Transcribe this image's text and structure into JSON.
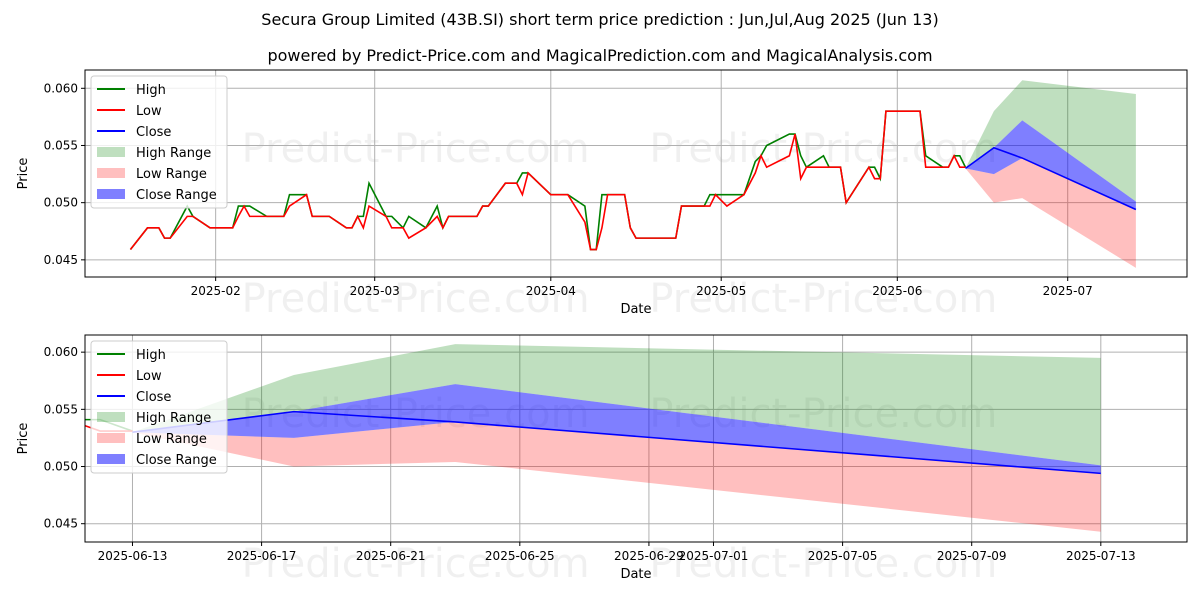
{
  "title": "Secura Group Limited (43B.SI) short term price prediction : Jun,Jul,Aug 2025 (Jun 13)",
  "subtitle": "powered by Predict-Price.com and MagicalPrediction.com and MagicalAnalysis.com",
  "watermark": "Predict-Price.com",
  "colors": {
    "high": "#008000",
    "low": "#ff0000",
    "close": "#0000ff",
    "high_range": "#c0dfc0",
    "low_range": "#ffc0c0",
    "close_range": "#8080ff"
  },
  "legend": [
    "High",
    "Low",
    "Close",
    "High Range",
    "Low Range",
    "Close Range"
  ],
  "chart_data": [
    {
      "type": "line",
      "panel": "overview",
      "xlabel": "Date",
      "ylabel": "Price",
      "xlim": [
        "2025-01-09",
        "2025-07-22"
      ],
      "ylim": [
        0.0435,
        0.0616
      ],
      "xticks": [
        [
          "2025-02-01",
          "2025-02"
        ],
        [
          "2025-03-01",
          "2025-03"
        ],
        [
          "2025-04-01",
          "2025-04"
        ],
        [
          "2025-05-01",
          "2025-05"
        ],
        [
          "2025-06-01",
          "2025-06"
        ],
        [
          "2025-07-01",
          "2025-07"
        ]
      ],
      "yticks": [
        "0.045",
        "0.050",
        "0.055",
        "0.060"
      ],
      "grid": true,
      "legend_position": "top-left"
    },
    {
      "type": "line",
      "panel": "forecast",
      "xlabel": "Date",
      "ylabel": "Price",
      "xlim": [
        "2025-06-11T12:42",
        "2025-07-15T16:05"
      ],
      "ylim": [
        0.0434,
        0.0615
      ],
      "xticks": [
        [
          "2025-06-13",
          "2025-06-13"
        ],
        [
          "2025-06-17",
          "2025-06-17"
        ],
        [
          "2025-06-21",
          "2025-06-21"
        ],
        [
          "2025-06-25",
          "2025-06-25"
        ],
        [
          "2025-06-29",
          "2025-06-29"
        ],
        [
          "2025-07-01",
          "2025-07-01"
        ],
        [
          "2025-07-05",
          "2025-07-05"
        ],
        [
          "2025-07-09",
          "2025-07-09"
        ],
        [
          "2025-07-13",
          "2025-07-13"
        ]
      ],
      "yticks": [
        "0.045",
        "0.050",
        "0.055",
        "0.060"
      ],
      "grid": true,
      "legend_position": "top-left"
    }
  ],
  "history": {
    "dates": [
      "2025-01-17",
      "2025-01-20",
      "2025-01-22",
      "2025-01-23",
      "2025-01-24",
      "2025-01-27",
      "2025-01-28",
      "2025-01-31",
      "2025-02-04",
      "2025-02-05",
      "2025-02-06",
      "2025-02-07",
      "2025-02-10",
      "2025-02-13",
      "2025-02-14",
      "2025-02-17",
      "2025-02-18",
      "2025-02-21",
      "2025-02-24",
      "2025-02-25",
      "2025-02-26",
      "2025-02-27",
      "2025-02-28",
      "2025-03-03",
      "2025-03-04",
      "2025-03-06",
      "2025-03-07",
      "2025-03-10",
      "2025-03-12",
      "2025-03-13",
      "2025-03-14",
      "2025-03-19",
      "2025-03-20",
      "2025-03-21",
      "2025-03-24",
      "2025-03-26",
      "2025-03-27",
      "2025-03-28",
      "2025-04-01",
      "2025-04-04",
      "2025-04-07",
      "2025-04-08",
      "2025-04-09",
      "2025-04-10",
      "2025-04-11",
      "2025-04-14",
      "2025-04-15",
      "2025-04-16",
      "2025-04-23",
      "2025-04-24",
      "2025-04-28",
      "2025-04-29",
      "2025-04-30",
      "2025-05-02",
      "2025-05-05",
      "2025-05-07",
      "2025-05-08",
      "2025-05-09",
      "2025-05-13",
      "2025-05-14",
      "2025-05-15",
      "2025-05-16",
      "2025-05-19",
      "2025-05-20",
      "2025-05-22",
      "2025-05-23",
      "2025-05-27",
      "2025-05-28",
      "2025-05-29",
      "2025-05-30",
      "2025-06-05",
      "2025-06-06",
      "2025-06-09",
      "2025-06-10",
      "2025-06-11",
      "2025-06-12",
      "2025-06-13"
    ],
    "high": [
      0.0459,
      0.0478,
      0.0478,
      0.0469,
      0.0469,
      0.0497,
      0.0488,
      0.0478,
      0.0478,
      0.0497,
      0.0497,
      0.0497,
      0.0488,
      0.0488,
      0.0507,
      0.0507,
      0.0488,
      0.0488,
      0.0478,
      0.0478,
      0.0488,
      0.0488,
      0.0517,
      0.0488,
      0.0488,
      0.0478,
      0.0488,
      0.0478,
      0.0497,
      0.0478,
      0.0488,
      0.0488,
      0.0497,
      0.0497,
      0.0517,
      0.0517,
      0.0526,
      0.0526,
      0.0507,
      0.0507,
      0.0497,
      0.0459,
      0.0459,
      0.0507,
      0.0507,
      0.0507,
      0.0478,
      0.0469,
      0.0469,
      0.0497,
      0.0497,
      0.0507,
      0.0507,
      0.0507,
      0.0507,
      0.0536,
      0.0541,
      0.055,
      0.056,
      0.056,
      0.0541,
      0.0531,
      0.0541,
      0.0531,
      0.0531,
      0.05,
      0.0531,
      0.0531,
      0.0521,
      0.058,
      0.058,
      0.0541,
      0.0531,
      0.0531,
      0.0541,
      0.0541,
      0.0531
    ],
    "low": [
      0.0459,
      0.0478,
      0.0478,
      0.0469,
      0.0469,
      0.0488,
      0.0488,
      0.0478,
      0.0478,
      0.0488,
      0.0497,
      0.0488,
      0.0488,
      0.0488,
      0.0497,
      0.0507,
      0.0488,
      0.0488,
      0.0478,
      0.0478,
      0.0488,
      0.0478,
      0.0497,
      0.0488,
      0.0478,
      0.0478,
      0.0469,
      0.0478,
      0.0488,
      0.0478,
      0.0488,
      0.0488,
      0.0497,
      0.0497,
      0.0517,
      0.0517,
      0.0507,
      0.0526,
      0.0507,
      0.0507,
      0.0483,
      0.0459,
      0.0459,
      0.0478,
      0.0507,
      0.0507,
      0.0478,
      0.0469,
      0.0469,
      0.0497,
      0.0497,
      0.0497,
      0.0507,
      0.0497,
      0.0507,
      0.0526,
      0.0541,
      0.0531,
      0.0541,
      0.056,
      0.0521,
      0.0531,
      0.0531,
      0.0531,
      0.0531,
      0.05,
      0.0531,
      0.0521,
      0.0521,
      0.058,
      0.058,
      0.0531,
      0.0531,
      0.0531,
      0.0541,
      0.0531,
      0.0531
    ]
  },
  "forecast": {
    "dates": [
      "2025-06-13",
      "2025-06-18",
      "2025-06-23",
      "2025-07-13"
    ],
    "close": [
      0.053,
      0.0548,
      0.0539,
      0.0494
    ],
    "high_range": [
      [
        0.053,
        0.053
      ],
      [
        0.0548,
        0.058
      ],
      [
        0.0572,
        0.0607
      ],
      [
        0.0501,
        0.0595
      ]
    ],
    "low_range": [
      [
        0.053,
        0.053
      ],
      [
        0.05,
        0.0525
      ],
      [
        0.0504,
        0.0539
      ],
      [
        0.0443,
        0.0494
      ]
    ],
    "close_range": [
      [
        0.053,
        0.053
      ],
      [
        0.0525,
        0.0548
      ],
      [
        0.0539,
        0.0572
      ],
      [
        0.0494,
        0.0501
      ]
    ]
  }
}
